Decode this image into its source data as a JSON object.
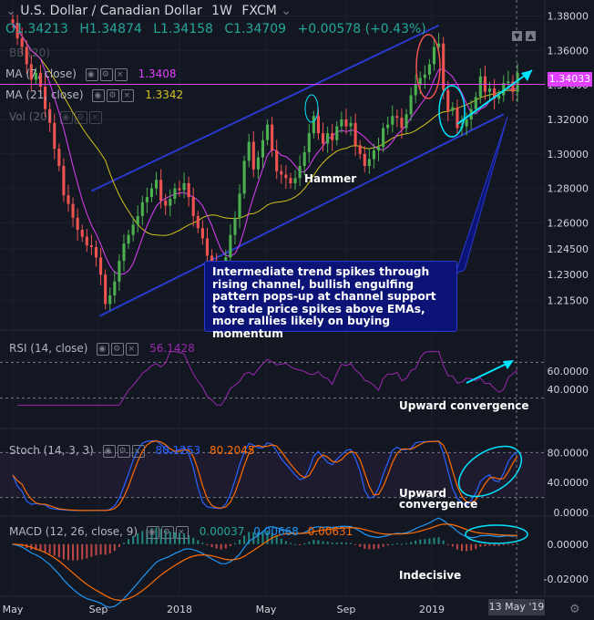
{
  "header": {
    "title": "U.S. Dollar / Canadian Dollar",
    "interval": "1W",
    "source": "FXCM",
    "open": "O1.34213",
    "high": "H1.34874",
    "low": "L1.34158",
    "close": "C1.34709",
    "change": "+0.00578 (+0.43%)"
  },
  "indicators": {
    "bb": {
      "label": "BB (20)"
    },
    "ma7": {
      "label": "MA (7, close)",
      "value": "1.3408"
    },
    "ma21": {
      "label": "MA (21, close)",
      "value": "1.3342"
    },
    "vol": {
      "label": "Vol (20)"
    },
    "rsi": {
      "label": "RSI (14, close)",
      "value": "56.1428"
    },
    "stoch": {
      "label": "Stoch (14, 3, 3)",
      "k": "80.1253",
      "d": "80.2045"
    },
    "macd": {
      "label": "MACD (12, 26, close, 9)",
      "hist": "0.00037",
      "macd": "0.00668",
      "signal": "0.00631"
    }
  },
  "annotations": {
    "hammer": "Hammer",
    "callout": "Intermediate trend spikes through rising channel, bullish engulfing pattern pops-up at channel support to trade price spikes above EMAs, more rallies likely on buying momentum",
    "rsi_note": "Upward convergence",
    "stoch_note_1": "Upward",
    "stoch_note_2": "convergence",
    "macd_note": "Indecisive"
  },
  "current_price_tag": "1.34033",
  "date_tag": "13 May '19",
  "colors": {
    "background": "#131722",
    "bull": "#26a69a",
    "bull_candle": "#4caf50",
    "bear": "#ef5350",
    "ma7": "#e040fb",
    "ma21": "#d4c21a",
    "channel": "#2a3ad0",
    "rsi": "#9c27b0",
    "stoch_k": "#2962ff",
    "stoch_d": "#ff6d00",
    "macd": "#2196f3",
    "signal": "#ff6d00",
    "highlight": "#00e5ff"
  },
  "chart_data": [
    {
      "type": "candlestick",
      "title": "U.S. Dollar / Canadian Dollar, 1W, FXCM",
      "y_ticks": [
        "1.38000",
        "1.36000",
        "1.34000",
        "1.32000",
        "1.30000",
        "1.28000",
        "1.26000",
        "1.24500",
        "1.23000",
        "1.21500"
      ],
      "x_ticks": [
        "May",
        "Sep",
        "2018",
        "May",
        "Sep",
        "2019"
      ],
      "ylim": [
        1.2,
        1.385
      ],
      "close_series_approx": [
        1.376,
        1.367,
        1.362,
        1.352,
        1.343,
        1.347,
        1.339,
        1.326,
        1.318,
        1.303,
        1.293,
        1.276,
        1.271,
        1.263,
        1.256,
        1.252,
        1.247,
        1.246,
        1.24,
        1.23,
        1.213,
        1.218,
        1.226,
        1.238,
        1.248,
        1.253,
        1.259,
        1.264,
        1.272,
        1.275,
        1.28,
        1.285,
        1.273,
        1.27,
        1.274,
        1.28,
        1.279,
        1.283,
        1.275,
        1.264,
        1.257,
        1.251,
        1.241,
        1.237,
        1.233,
        1.229,
        1.24,
        1.253,
        1.263,
        1.277,
        1.296,
        1.307,
        1.291,
        1.298,
        1.308,
        1.317,
        1.302,
        1.29,
        1.288,
        1.286,
        1.283,
        1.286,
        1.293,
        1.301,
        1.312,
        1.322,
        1.312,
        1.306,
        1.312,
        1.308,
        1.316,
        1.32,
        1.316,
        1.318,
        1.305,
        1.3,
        1.293,
        1.297,
        1.302,
        1.304,
        1.315,
        1.317,
        1.322,
        1.321,
        1.315,
        1.323,
        1.334,
        1.34,
        1.344,
        1.346,
        1.352,
        1.362,
        1.364,
        1.337,
        1.325,
        1.327,
        1.315,
        1.316,
        1.32,
        1.326,
        1.333,
        1.345,
        1.336,
        1.338,
        1.332,
        1.334,
        1.341,
        1.342,
        1.336,
        1.347
      ],
      "ma7_value": 1.3408,
      "ma21_value": 1.3342,
      "current_price": 1.34033
    },
    {
      "type": "line",
      "title": "RSI (14, close)",
      "y_ticks": [
        "60.0000",
        "40.0000"
      ],
      "last_value": 56.1428
    },
    {
      "type": "line",
      "title": "Stoch (14, 3, 3)",
      "y_ticks": [
        "80.0000",
        "40.0000",
        "0.0000"
      ],
      "series": [
        {
          "name": "%K",
          "last": 80.1253
        },
        {
          "name": "%D",
          "last": 80.2045
        }
      ]
    },
    {
      "type": "bar",
      "title": "MACD (12, 26, close, 9)",
      "y_ticks": [
        "0.00000",
        "-0.02000"
      ],
      "series": [
        {
          "name": "histogram",
          "last": 0.00037
        },
        {
          "name": "MACD",
          "last": 0.00668
        },
        {
          "name": "signal",
          "last": 0.00631
        }
      ]
    }
  ]
}
